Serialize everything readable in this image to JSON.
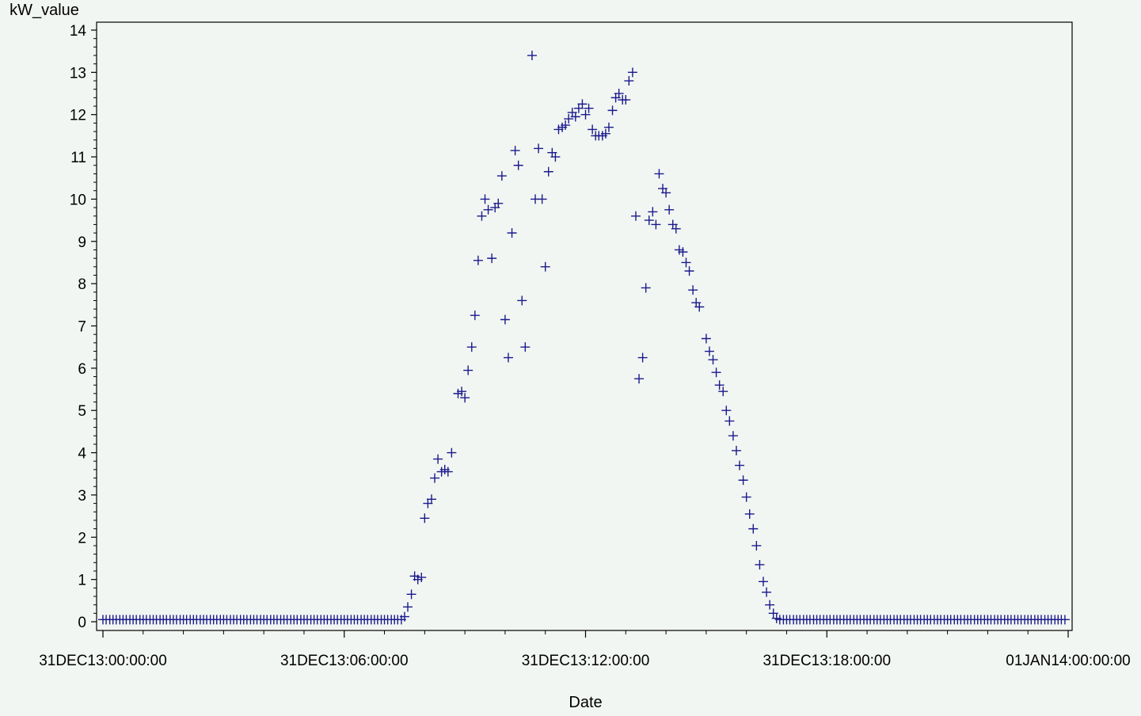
{
  "chart_data": {
    "type": "scatter",
    "marker": "plus",
    "marker_color": "#1a1a8c",
    "title": "",
    "xlabel": "Date",
    "ylabel": "kW_value",
    "x_unit": "hours",
    "xlim": [
      0,
      24
    ],
    "ylim": [
      0,
      14
    ],
    "y_ticks": [
      0,
      1,
      2,
      3,
      4,
      5,
      6,
      7,
      8,
      9,
      10,
      11,
      12,
      13,
      14
    ],
    "x_ticks": [
      {
        "value": 0,
        "label": "31DEC13:00:00:00"
      },
      {
        "value": 6,
        "label": "31DEC13:06:00:00"
      },
      {
        "value": 12,
        "label": "31DEC13:12:00:00"
      },
      {
        "value": 18,
        "label": "31DEC13:18:00:00"
      },
      {
        "value": 24,
        "label": "01JAN14:00:00:00"
      }
    ],
    "x_minor_per_major": 6,
    "y_minor_per_major": 4,
    "grid": false,
    "legend": "none",
    "series": [
      {
        "points": [
          [
            0.0,
            0.05
          ],
          [
            0.08,
            0.05
          ],
          [
            0.17,
            0.05
          ],
          [
            0.25,
            0.05
          ],
          [
            0.33,
            0.05
          ],
          [
            0.42,
            0.05
          ],
          [
            0.5,
            0.05
          ],
          [
            0.58,
            0.05
          ],
          [
            0.67,
            0.05
          ],
          [
            0.75,
            0.05
          ],
          [
            0.83,
            0.05
          ],
          [
            0.92,
            0.05
          ],
          [
            1.0,
            0.05
          ],
          [
            1.08,
            0.05
          ],
          [
            1.17,
            0.05
          ],
          [
            1.25,
            0.05
          ],
          [
            1.33,
            0.05
          ],
          [
            1.42,
            0.05
          ],
          [
            1.5,
            0.05
          ],
          [
            1.58,
            0.05
          ],
          [
            1.67,
            0.05
          ],
          [
            1.75,
            0.05
          ],
          [
            1.83,
            0.05
          ],
          [
            1.92,
            0.05
          ],
          [
            2.0,
            0.05
          ],
          [
            2.08,
            0.05
          ],
          [
            2.17,
            0.05
          ],
          [
            2.25,
            0.05
          ],
          [
            2.33,
            0.05
          ],
          [
            2.42,
            0.05
          ],
          [
            2.5,
            0.05
          ],
          [
            2.58,
            0.05
          ],
          [
            2.67,
            0.05
          ],
          [
            2.75,
            0.05
          ],
          [
            2.83,
            0.05
          ],
          [
            2.92,
            0.05
          ],
          [
            3.0,
            0.05
          ],
          [
            3.08,
            0.05
          ],
          [
            3.17,
            0.05
          ],
          [
            3.25,
            0.05
          ],
          [
            3.33,
            0.05
          ],
          [
            3.42,
            0.05
          ],
          [
            3.5,
            0.05
          ],
          [
            3.58,
            0.05
          ],
          [
            3.67,
            0.05
          ],
          [
            3.75,
            0.05
          ],
          [
            3.83,
            0.05
          ],
          [
            3.92,
            0.05
          ],
          [
            4.0,
            0.05
          ],
          [
            4.08,
            0.05
          ],
          [
            4.17,
            0.05
          ],
          [
            4.25,
            0.05
          ],
          [
            4.33,
            0.05
          ],
          [
            4.42,
            0.05
          ],
          [
            4.5,
            0.05
          ],
          [
            4.58,
            0.05
          ],
          [
            4.67,
            0.05
          ],
          [
            4.75,
            0.05
          ],
          [
            4.83,
            0.05
          ],
          [
            4.92,
            0.05
          ],
          [
            5.0,
            0.05
          ],
          [
            5.08,
            0.05
          ],
          [
            5.17,
            0.05
          ],
          [
            5.25,
            0.05
          ],
          [
            5.33,
            0.05
          ],
          [
            5.42,
            0.05
          ],
          [
            5.5,
            0.05
          ],
          [
            5.58,
            0.05
          ],
          [
            5.67,
            0.05
          ],
          [
            5.75,
            0.05
          ],
          [
            5.83,
            0.05
          ],
          [
            5.92,
            0.05
          ],
          [
            6.0,
            0.05
          ],
          [
            6.08,
            0.05
          ],
          [
            6.17,
            0.05
          ],
          [
            6.25,
            0.05
          ],
          [
            6.33,
            0.05
          ],
          [
            6.42,
            0.05
          ],
          [
            6.5,
            0.05
          ],
          [
            6.58,
            0.05
          ],
          [
            6.67,
            0.05
          ],
          [
            6.75,
            0.05
          ],
          [
            6.83,
            0.05
          ],
          [
            6.92,
            0.05
          ],
          [
            7.0,
            0.05
          ],
          [
            7.08,
            0.05
          ],
          [
            7.17,
            0.05
          ],
          [
            7.25,
            0.05
          ],
          [
            7.33,
            0.05
          ],
          [
            7.42,
            0.05
          ],
          [
            7.5,
            0.12
          ],
          [
            7.58,
            0.35
          ],
          [
            7.67,
            0.65
          ],
          [
            7.75,
            1.08
          ],
          [
            7.83,
            1.0
          ],
          [
            7.92,
            1.05
          ],
          [
            8.0,
            2.45
          ],
          [
            8.08,
            2.8
          ],
          [
            8.17,
            2.9
          ],
          [
            8.25,
            3.4
          ],
          [
            8.33,
            3.85
          ],
          [
            8.42,
            3.55
          ],
          [
            8.5,
            3.6
          ],
          [
            8.58,
            3.55
          ],
          [
            8.67,
            4.0
          ],
          [
            8.83,
            5.4
          ],
          [
            8.92,
            5.45
          ],
          [
            9.0,
            5.3
          ],
          [
            9.08,
            5.95
          ],
          [
            9.17,
            6.5
          ],
          [
            9.25,
            7.25
          ],
          [
            9.33,
            8.55
          ],
          [
            9.42,
            9.6
          ],
          [
            9.5,
            10.0
          ],
          [
            9.58,
            9.75
          ],
          [
            9.67,
            8.6
          ],
          [
            9.75,
            9.8
          ],
          [
            9.83,
            9.9
          ],
          [
            9.92,
            10.55
          ],
          [
            10.0,
            7.15
          ],
          [
            10.08,
            6.25
          ],
          [
            10.17,
            9.2
          ],
          [
            10.25,
            11.15
          ],
          [
            10.33,
            10.8
          ],
          [
            10.42,
            7.6
          ],
          [
            10.5,
            6.5
          ],
          [
            10.67,
            13.4
          ],
          [
            10.75,
            10.0
          ],
          [
            10.83,
            11.2
          ],
          [
            10.92,
            10.0
          ],
          [
            11.0,
            8.4
          ],
          [
            11.08,
            10.65
          ],
          [
            11.17,
            11.1
          ],
          [
            11.25,
            11.0
          ],
          [
            11.33,
            11.65
          ],
          [
            11.42,
            11.7
          ],
          [
            11.5,
            11.75
          ],
          [
            11.58,
            11.9
          ],
          [
            11.67,
            12.05
          ],
          [
            11.75,
            11.95
          ],
          [
            11.83,
            12.15
          ],
          [
            11.92,
            12.25
          ],
          [
            12.0,
            12.0
          ],
          [
            12.08,
            12.15
          ],
          [
            12.17,
            11.65
          ],
          [
            12.25,
            11.5
          ],
          [
            12.33,
            11.5
          ],
          [
            12.42,
            11.5
          ],
          [
            12.5,
            11.55
          ],
          [
            12.58,
            11.7
          ],
          [
            12.67,
            12.1
          ],
          [
            12.75,
            12.4
          ],
          [
            12.83,
            12.5
          ],
          [
            12.92,
            12.35
          ],
          [
            13.0,
            12.35
          ],
          [
            13.08,
            12.8
          ],
          [
            13.17,
            13.0
          ],
          [
            13.25,
            9.6
          ],
          [
            13.33,
            5.75
          ],
          [
            13.42,
            6.25
          ],
          [
            13.5,
            7.9
          ],
          [
            13.58,
            9.5
          ],
          [
            13.67,
            9.7
          ],
          [
            13.75,
            9.4
          ],
          [
            13.83,
            10.6
          ],
          [
            13.92,
            10.25
          ],
          [
            14.0,
            10.15
          ],
          [
            14.08,
            9.75
          ],
          [
            14.17,
            9.4
          ],
          [
            14.25,
            9.3
          ],
          [
            14.33,
            8.8
          ],
          [
            14.42,
            8.75
          ],
          [
            14.5,
            8.5
          ],
          [
            14.58,
            8.3
          ],
          [
            14.67,
            7.85
          ],
          [
            14.75,
            7.55
          ],
          [
            14.83,
            7.45
          ],
          [
            15.0,
            6.7
          ],
          [
            15.08,
            6.4
          ],
          [
            15.17,
            6.2
          ],
          [
            15.25,
            5.9
          ],
          [
            15.33,
            5.6
          ],
          [
            15.42,
            5.45
          ],
          [
            15.5,
            5.0
          ],
          [
            15.58,
            4.75
          ],
          [
            15.67,
            4.4
          ],
          [
            15.75,
            4.05
          ],
          [
            15.83,
            3.7
          ],
          [
            15.92,
            3.35
          ],
          [
            16.0,
            2.95
          ],
          [
            16.08,
            2.55
          ],
          [
            16.17,
            2.2
          ],
          [
            16.25,
            1.8
          ],
          [
            16.33,
            1.35
          ],
          [
            16.42,
            0.95
          ],
          [
            16.5,
            0.7
          ],
          [
            16.58,
            0.4
          ],
          [
            16.67,
            0.2
          ],
          [
            16.75,
            0.08
          ],
          [
            16.83,
            0.05
          ],
          [
            16.92,
            0.05
          ],
          [
            17.0,
            0.05
          ],
          [
            17.08,
            0.05
          ],
          [
            17.17,
            0.05
          ],
          [
            17.25,
            0.05
          ],
          [
            17.33,
            0.05
          ],
          [
            17.42,
            0.05
          ],
          [
            17.5,
            0.05
          ],
          [
            17.58,
            0.05
          ],
          [
            17.67,
            0.05
          ],
          [
            17.75,
            0.05
          ],
          [
            17.83,
            0.05
          ],
          [
            17.92,
            0.05
          ],
          [
            18.0,
            0.05
          ],
          [
            18.08,
            0.05
          ],
          [
            18.17,
            0.05
          ],
          [
            18.25,
            0.05
          ],
          [
            18.33,
            0.05
          ],
          [
            18.42,
            0.05
          ],
          [
            18.5,
            0.05
          ],
          [
            18.58,
            0.05
          ],
          [
            18.67,
            0.05
          ],
          [
            18.75,
            0.05
          ],
          [
            18.83,
            0.05
          ],
          [
            18.92,
            0.05
          ],
          [
            19.0,
            0.05
          ],
          [
            19.08,
            0.05
          ],
          [
            19.17,
            0.05
          ],
          [
            19.25,
            0.05
          ],
          [
            19.33,
            0.05
          ],
          [
            19.42,
            0.05
          ],
          [
            19.5,
            0.05
          ],
          [
            19.58,
            0.05
          ],
          [
            19.67,
            0.05
          ],
          [
            19.75,
            0.05
          ],
          [
            19.83,
            0.05
          ],
          [
            19.92,
            0.05
          ],
          [
            20.0,
            0.05
          ],
          [
            20.08,
            0.05
          ],
          [
            20.17,
            0.05
          ],
          [
            20.25,
            0.05
          ],
          [
            20.33,
            0.05
          ],
          [
            20.42,
            0.05
          ],
          [
            20.5,
            0.05
          ],
          [
            20.58,
            0.05
          ],
          [
            20.67,
            0.05
          ],
          [
            20.75,
            0.05
          ],
          [
            20.83,
            0.05
          ],
          [
            20.92,
            0.05
          ],
          [
            21.0,
            0.05
          ],
          [
            21.08,
            0.05
          ],
          [
            21.17,
            0.05
          ],
          [
            21.25,
            0.05
          ],
          [
            21.33,
            0.05
          ],
          [
            21.42,
            0.05
          ],
          [
            21.5,
            0.05
          ],
          [
            21.58,
            0.05
          ],
          [
            21.67,
            0.05
          ],
          [
            21.75,
            0.05
          ],
          [
            21.83,
            0.05
          ],
          [
            21.92,
            0.05
          ],
          [
            22.0,
            0.05
          ],
          [
            22.08,
            0.05
          ],
          [
            22.17,
            0.05
          ],
          [
            22.25,
            0.05
          ],
          [
            22.33,
            0.05
          ],
          [
            22.42,
            0.05
          ],
          [
            22.5,
            0.05
          ],
          [
            22.58,
            0.05
          ],
          [
            22.67,
            0.05
          ],
          [
            22.75,
            0.05
          ],
          [
            22.83,
            0.05
          ],
          [
            22.92,
            0.05
          ],
          [
            23.0,
            0.05
          ],
          [
            23.08,
            0.05
          ],
          [
            23.17,
            0.05
          ],
          [
            23.25,
            0.05
          ],
          [
            23.33,
            0.05
          ],
          [
            23.42,
            0.05
          ],
          [
            23.5,
            0.05
          ],
          [
            23.58,
            0.05
          ],
          [
            23.67,
            0.05
          ],
          [
            23.75,
            0.05
          ],
          [
            23.83,
            0.05
          ],
          [
            23.92,
            0.05
          ]
        ]
      }
    ]
  }
}
